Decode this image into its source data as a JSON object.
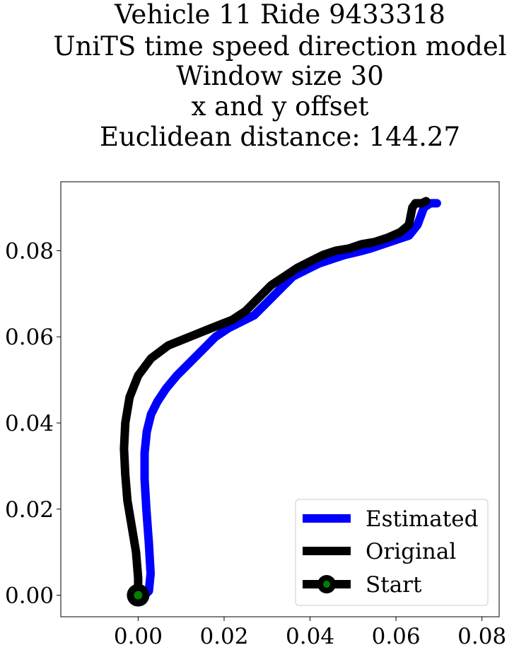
{
  "chart_data": {
    "type": "line",
    "title_lines": [
      "Vehicle 11 Ride 9433318",
      "UniTS time speed direction model",
      "Window size 30",
      "x and y offset",
      "Euclidean distance: 144.27"
    ],
    "xlabel": "",
    "ylabel": "",
    "xlim": [
      -0.018,
      0.084
    ],
    "ylim": [
      -0.005,
      0.096
    ],
    "x_ticks": [
      0.0,
      0.02,
      0.04,
      0.06,
      0.08
    ],
    "y_ticks": [
      0.0,
      0.02,
      0.04,
      0.06,
      0.08
    ],
    "x_tick_labels": [
      "0.00",
      "0.02",
      "0.04",
      "0.06",
      "0.08"
    ],
    "y_tick_labels": [
      "0.00",
      "0.02",
      "0.04",
      "0.06",
      "0.08"
    ],
    "grid": false,
    "legend_position": "lower-right",
    "colors": {
      "estimated": "#0000ff",
      "original": "#000000",
      "start_marker_fill": "#008000",
      "start_marker_edge": "#000000"
    },
    "series": [
      {
        "name": "Estimated",
        "color": "#0000ff",
        "points": [
          [
            0.0015,
            0.0
          ],
          [
            0.0025,
            0.001
          ],
          [
            0.0029,
            0.005
          ],
          [
            0.0025,
            0.012
          ],
          [
            0.0019,
            0.02
          ],
          [
            0.0015,
            0.027
          ],
          [
            0.0015,
            0.033
          ],
          [
            0.002,
            0.038
          ],
          [
            0.003,
            0.042
          ],
          [
            0.0045,
            0.045
          ],
          [
            0.0065,
            0.048
          ],
          [
            0.009,
            0.051
          ],
          [
            0.012,
            0.054
          ],
          [
            0.015,
            0.057
          ],
          [
            0.018,
            0.06
          ],
          [
            0.021,
            0.062
          ],
          [
            0.024,
            0.0635
          ],
          [
            0.027,
            0.065
          ],
          [
            0.03,
            0.068
          ],
          [
            0.033,
            0.071
          ],
          [
            0.036,
            0.074
          ],
          [
            0.039,
            0.0755
          ],
          [
            0.042,
            0.077
          ],
          [
            0.045,
            0.078
          ],
          [
            0.048,
            0.079
          ],
          [
            0.051,
            0.0797
          ],
          [
            0.054,
            0.0805
          ],
          [
            0.057,
            0.0815
          ],
          [
            0.06,
            0.0825
          ],
          [
            0.063,
            0.0835
          ],
          [
            0.065,
            0.086
          ],
          [
            0.0665,
            0.09
          ],
          [
            0.068,
            0.091
          ],
          [
            0.0695,
            0.091
          ]
        ]
      },
      {
        "name": "Original",
        "color": "#000000",
        "points": [
          [
            0.0,
            0.0
          ],
          [
            0.0,
            0.004
          ],
          [
            -0.0005,
            0.01
          ],
          [
            -0.0015,
            0.016
          ],
          [
            -0.0025,
            0.022
          ],
          [
            -0.003,
            0.028
          ],
          [
            -0.0033,
            0.034
          ],
          [
            -0.003,
            0.04
          ],
          [
            -0.002,
            0.046
          ],
          [
            0.0,
            0.051
          ],
          [
            0.003,
            0.055
          ],
          [
            0.007,
            0.058
          ],
          [
            0.012,
            0.06
          ],
          [
            0.017,
            0.062
          ],
          [
            0.022,
            0.064
          ],
          [
            0.025,
            0.066
          ],
          [
            0.028,
            0.069
          ],
          [
            0.031,
            0.072
          ],
          [
            0.034,
            0.074
          ],
          [
            0.037,
            0.076
          ],
          [
            0.04,
            0.0775
          ],
          [
            0.043,
            0.079
          ],
          [
            0.046,
            0.08
          ],
          [
            0.049,
            0.0805
          ],
          [
            0.052,
            0.0815
          ],
          [
            0.055,
            0.082
          ],
          [
            0.058,
            0.083
          ],
          [
            0.061,
            0.0843
          ],
          [
            0.063,
            0.086
          ],
          [
            0.0635,
            0.0885
          ],
          [
            0.0638,
            0.09
          ],
          [
            0.0645,
            0.091
          ],
          [
            0.066,
            0.091
          ],
          [
            0.067,
            0.0915
          ]
        ]
      }
    ],
    "start_point": [
      0.0,
      0.0
    ],
    "legend": [
      {
        "label": "Estimated",
        "kind": "line",
        "color": "#0000ff"
      },
      {
        "label": "Original",
        "kind": "line",
        "color": "#000000"
      },
      {
        "label": "Start",
        "kind": "line-marker",
        "color": "#000000",
        "marker_fill": "#008000"
      }
    ]
  }
}
